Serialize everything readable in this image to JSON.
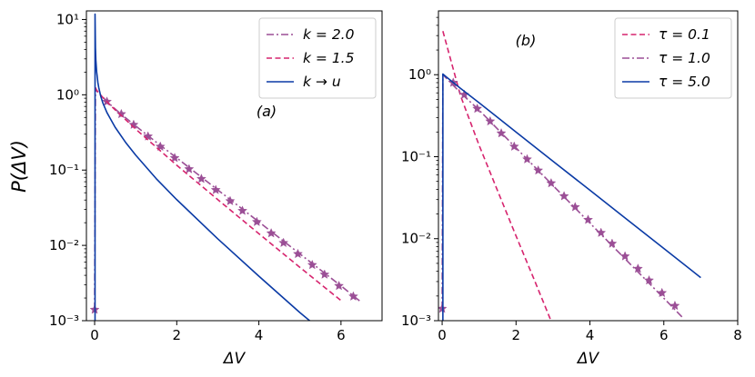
{
  "figure": {
    "y_axis_label": "P(ΔV)",
    "y_tick_labels": [
      "10⁻³",
      "10⁻²",
      "10⁻¹",
      "10⁰",
      "10¹"
    ]
  },
  "chart_data": [
    {
      "type": "line",
      "panel_label": "(a)",
      "xlabel": "ΔV",
      "ylabel": "P(ΔV)",
      "xscale": "linear",
      "yscale": "log",
      "xlim": [
        -0.2,
        7.0
      ],
      "ylim": [
        0.001,
        13
      ],
      "x_ticks": [
        0,
        2,
        4,
        6
      ],
      "x_tick_labels": [
        "0",
        "2",
        "4",
        "6"
      ],
      "y_ticks": [
        0.001,
        0.01,
        0.1,
        1,
        10
      ],
      "grid": false,
      "legend_position": "top-right",
      "series": [
        {
          "name": "k = 2.0",
          "legend_label": "k = 2.0",
          "color": "#9b4f96",
          "style": "dashdot",
          "markers": "star",
          "x": [
            0,
            0.02,
            0.05,
            0.1,
            0.2,
            0.3,
            0.6,
            1.0,
            1.5,
            2.0,
            3.0,
            4.0,
            5.0,
            6.0,
            6.5
          ],
          "y": [
            0.0014,
            1.2,
            1.12,
            1.05,
            0.93,
            0.81,
            0.58,
            0.385,
            0.235,
            0.145,
            0.0545,
            0.0205,
            0.0077,
            0.0029,
            0.00175
          ],
          "marker_x": [
            0,
            0.3,
            0.65,
            0.95,
            1.3,
            1.6,
            1.95,
            2.3,
            2.6,
            2.95,
            3.3,
            3.6,
            3.95,
            4.3,
            4.6,
            4.95,
            5.3,
            5.6,
            5.95,
            6.3
          ],
          "marker_y": [
            0.0014,
            0.81,
            0.555,
            0.4,
            0.28,
            0.205,
            0.145,
            0.103,
            0.0765,
            0.0545,
            0.0388,
            0.0288,
            0.0205,
            0.0145,
            0.0108,
            0.0077,
            0.0055,
            0.0041,
            0.0029,
            0.0021
          ]
        },
        {
          "name": "k = 1.5",
          "legend_label": "k = 1.5",
          "color": "#d6246e",
          "style": "dashed",
          "x": [
            0.02,
            0.05,
            0.1,
            0.2,
            0.3,
            0.5,
            1.0,
            2.0,
            3.0,
            4.0,
            5.0,
            6.0
          ],
          "y": [
            1.25,
            1.15,
            1.06,
            0.92,
            0.81,
            0.63,
            0.35,
            0.116,
            0.0405,
            0.0143,
            0.0051,
            0.00185
          ]
        },
        {
          "name": "k → u",
          "legend_label": "k → u",
          "color": "#0a3aa5",
          "style": "solid",
          "x": [
            0,
            0.01,
            0.01,
            0.02,
            0.03,
            0.05,
            0.08,
            0.1,
            0.15,
            0.2,
            0.3,
            0.5,
            0.75,
            1.0,
            1.5,
            2.0,
            3.0,
            4.0,
            5.0,
            5.5
          ],
          "y": [
            0.001,
            0.001,
            11.8,
            4.2,
            2.9,
            2.0,
            1.45,
            1.25,
            0.95,
            0.78,
            0.58,
            0.37,
            0.235,
            0.158,
            0.077,
            0.0405,
            0.0122,
            0.0039,
            0.00128,
            0.00076
          ]
        }
      ]
    },
    {
      "type": "line",
      "panel_label": "(b)",
      "xlabel": "ΔV",
      "xscale": "linear",
      "yscale": "log",
      "xlim": [
        -0.1,
        8.0
      ],
      "ylim": [
        0.001,
        6
      ],
      "x_ticks": [
        0,
        2,
        4,
        6,
        8
      ],
      "x_tick_labels": [
        "0",
        "2",
        "4",
        "6",
        "8"
      ],
      "y_ticks": [
        0.001,
        0.01,
        0.1,
        1
      ],
      "grid": false,
      "legend_position": "top-right",
      "series": [
        {
          "name": "τ = 0.1",
          "legend_label": "τ = 0.1",
          "color": "#d6246e",
          "style": "dashed",
          "x": [
            0.02,
            0.5,
            1.0,
            1.5,
            2.0,
            2.5,
            3.0
          ],
          "y": [
            3.4,
            0.55,
            0.138,
            0.0385,
            0.0108,
            0.0031,
            0.00087
          ]
        },
        {
          "name": "τ = 1.0",
          "legend_label": "τ = 1.0",
          "color": "#9b4f96",
          "style": "dashdot",
          "markers": "star",
          "x": [
            0,
            0.02,
            0.1,
            0.5,
            1.0,
            2.0,
            3.0,
            4.0,
            5.0,
            6.0,
            6.5
          ],
          "y": [
            0.0014,
            1.0,
            0.92,
            0.6,
            0.37,
            0.128,
            0.0445,
            0.0155,
            0.0054,
            0.00188,
            0.0011
          ],
          "marker_x": [
            0,
            0.3,
            0.6,
            0.95,
            1.3,
            1.6,
            1.95,
            2.3,
            2.6,
            2.95,
            3.3,
            3.6,
            3.95,
            4.3,
            4.6,
            4.95,
            5.3,
            5.6,
            5.95,
            6.3
          ],
          "marker_y": [
            0.0014,
            0.8,
            0.57,
            0.385,
            0.27,
            0.193,
            0.133,
            0.093,
            0.068,
            0.0475,
            0.033,
            0.0243,
            0.017,
            0.0118,
            0.0087,
            0.0061,
            0.0043,
            0.0031,
            0.00218,
            0.00152
          ]
        },
        {
          "name": "τ = 5.0",
          "legend_label": "τ = 5.0",
          "color": "#0a3aa5",
          "style": "solid",
          "x": [
            0,
            0.02,
            0.02,
            0.1,
            0.5,
            1.0,
            2.0,
            3.0,
            4.0,
            5.0,
            6.0,
            7.0
          ],
          "y": [
            0.001,
            0.001,
            1.02,
            0.95,
            0.68,
            0.455,
            0.2,
            0.088,
            0.039,
            0.0172,
            0.0076,
            0.00335
          ]
        }
      ]
    }
  ]
}
